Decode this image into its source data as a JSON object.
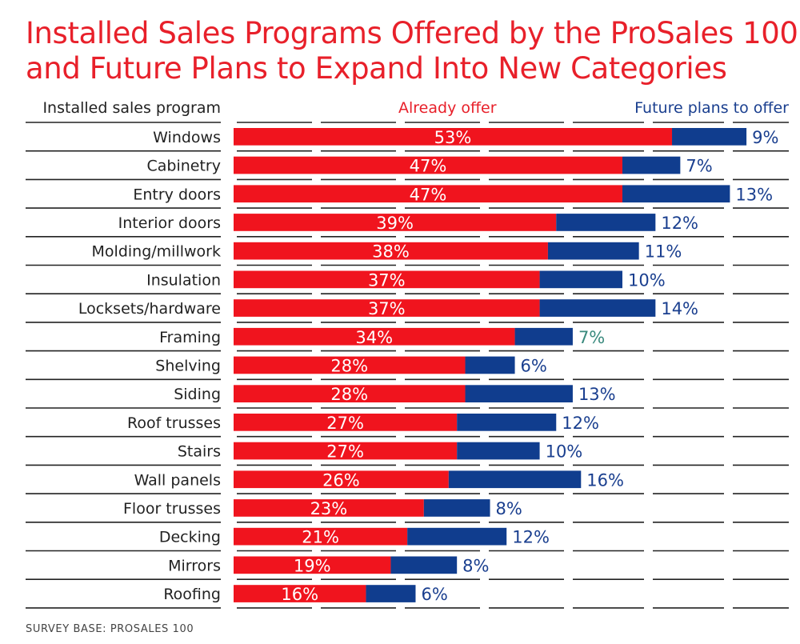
{
  "title_line1": "Installed Sales Programs Offered by the ProSales 100",
  "title_line2": "and Future Plans to Expand Into New Categories",
  "header": {
    "category": "Installed sales program",
    "series_a": "Already offer",
    "series_b": "Future plans to offer"
  },
  "footnote": "SURVEY BASE: PROSALES 100",
  "colors": {
    "title": "#e8202a",
    "already_offer": "#f0141e",
    "future_plans": "#103d8e",
    "future_label": "#1a3f8f",
    "highlight_label": "#3a8a7e",
    "grid": "#222222"
  },
  "chart_data": {
    "type": "bar",
    "orientation": "horizontal",
    "stacked": true,
    "categories": [
      "Windows",
      "Cabinetry",
      "Entry doors",
      "Interior doors",
      "Molding/millwork",
      "Insulation",
      "Locksets/hardware",
      "Framing",
      "Shelving",
      "Siding",
      "Roof trusses",
      "Stairs",
      "Wall panels",
      "Floor trusses",
      "Decking",
      "Mirrors",
      "Roofing"
    ],
    "series": [
      {
        "name": "Already offer",
        "values": [
          53,
          47,
          47,
          39,
          38,
          37,
          37,
          34,
          28,
          28,
          27,
          27,
          26,
          23,
          21,
          19,
          16
        ]
      },
      {
        "name": "Future plans to offer",
        "values": [
          9,
          7,
          13,
          12,
          11,
          10,
          14,
          7,
          6,
          13,
          12,
          10,
          16,
          8,
          12,
          8,
          6
        ]
      }
    ],
    "value_suffix": "%",
    "highlighted_label_index": 7,
    "xlim": [
      0,
      67
    ],
    "grid": true,
    "legend": "top"
  }
}
